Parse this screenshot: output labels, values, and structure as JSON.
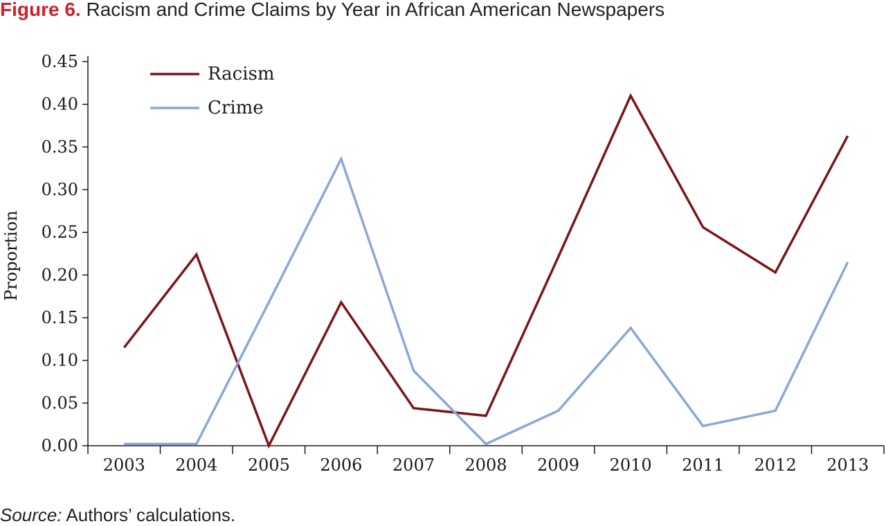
{
  "figure": {
    "label": "Figure 6.",
    "title": "Racism and Crime Claims by Year in African American Newspapers"
  },
  "source": {
    "label": "Source:",
    "text": "Authors’ calculations."
  },
  "chart_data": {
    "type": "line",
    "title": "Racism and Crime Claims by Year in African American Newspapers",
    "xlabel": "",
    "ylabel": "Proportion",
    "categories": [
      "2003",
      "2004",
      "2005",
      "2006",
      "2007",
      "2008",
      "2009",
      "2010",
      "2011",
      "2012",
      "2013"
    ],
    "ylim": [
      0,
      0.45
    ],
    "yticks": [
      "0.00",
      "0.05",
      "0.10",
      "0.15",
      "0.20",
      "0.25",
      "0.30",
      "0.35",
      "0.40",
      "0.45"
    ],
    "legend": "top-left",
    "grid": false,
    "series": [
      {
        "name": "Racism",
        "color": "#7b1518",
        "values": [
          0.115,
          0.224,
          0.0,
          0.168,
          0.044,
          0.035,
          0.221,
          0.41,
          0.256,
          0.203,
          0.363
        ]
      },
      {
        "name": "Crime",
        "color": "#8aa7d8",
        "values": [
          0.002,
          0.002,
          0.168,
          0.336,
          0.088,
          0.002,
          0.041,
          0.138,
          0.023,
          0.041,
          0.215
        ]
      }
    ]
  }
}
